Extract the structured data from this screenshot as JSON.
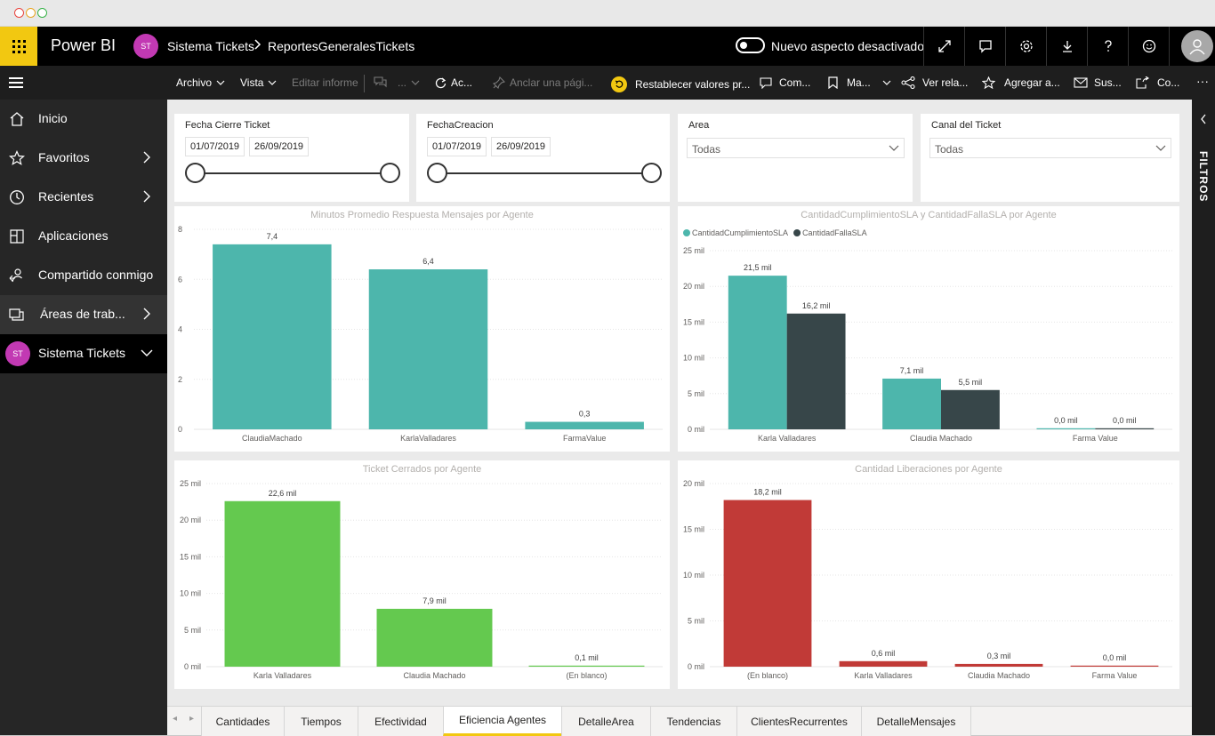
{
  "header": {
    "brand": "Power BI",
    "workspace_initials": "ST",
    "workspace_name": "Sistema Tickets",
    "report_name": "ReportesGeneralesTickets",
    "toggle_label": "Nuevo aspecto desactivado",
    "icons": [
      "expand-icon",
      "comment-icon",
      "settings-icon",
      "download-icon",
      "help-icon",
      "feedback-icon",
      "user-avatar-icon"
    ]
  },
  "commandbar": {
    "archivo": "Archivo",
    "vista": "Vista",
    "editar": "Editar informe",
    "more_dots": "...",
    "actualizar": "Ac...",
    "anclar": "Anclar una pági...",
    "restablecer": "Restablecer valores pr...",
    "comentar": "Com...",
    "marcadores": "Ma...",
    "ver_relacionado": "Ver rela...",
    "agregar": "Agregar a...",
    "suscribir": "Sus...",
    "compartir": "Co...",
    "overflow": "···"
  },
  "nav": {
    "items": [
      {
        "label": "Inicio",
        "icon": "home-icon"
      },
      {
        "label": "Favoritos",
        "icon": "star-icon"
      },
      {
        "label": "Recientes",
        "icon": "clock-icon"
      },
      {
        "label": "Aplicaciones",
        "icon": "apps-icon"
      },
      {
        "label": "Compartido conmigo",
        "icon": "shared-icon"
      },
      {
        "label": "Áreas de trab...",
        "icon": "workspaces-icon"
      },
      {
        "label": "Sistema Tickets",
        "initials": "ST"
      }
    ]
  },
  "slicers": {
    "fecha_cierre": {
      "title": "Fecha Cierre Ticket",
      "from": "01/07/2019",
      "to": "26/09/2019"
    },
    "fecha_creacion": {
      "title": "FechaCreacion",
      "from": "01/07/2019",
      "to": "26/09/2019"
    },
    "area": {
      "title": "Area",
      "value": "Todas"
    },
    "canal": {
      "title": "Canal del Ticket",
      "value": "Todas"
    }
  },
  "filters_label": "FILTROS",
  "colors": {
    "teal": "#4db6ac",
    "dark": "#374649",
    "green": "#64c94f",
    "red": "#c13a37",
    "accent": "#f2c811"
  },
  "chart_data": [
    {
      "type": "bar",
      "title": "Minutos Promedio Respuesta Mensajes por Agente",
      "categories": [
        "ClaudiaMachado",
        "KarlaValladares",
        "FarmaValue"
      ],
      "series": [
        {
          "values": [
            7.4,
            6.4,
            0.3
          ],
          "labels": [
            "7,4",
            "6,4",
            "0,3"
          ],
          "color": "#4db6ac"
        }
      ],
      "yticks": [
        "0",
        "2",
        "4",
        "6",
        "8"
      ],
      "ylim": [
        0,
        8
      ]
    },
    {
      "type": "bar",
      "title": "CantidadCumplimientoSLA y CantidadFallaSLA por Agente",
      "categories": [
        "Karla Valladares",
        "Claudia Machado",
        "Farma Value"
      ],
      "series": [
        {
          "name": "CantidadCumplimientoSLA",
          "values": [
            21.5,
            7.1,
            0.0
          ],
          "labels": [
            "21,5 mil",
            "7,1 mil",
            "0,0 mil"
          ],
          "color": "#4db6ac"
        },
        {
          "name": "CantidadFallaSLA",
          "values": [
            16.2,
            5.5,
            0.0
          ],
          "labels": [
            "16,2 mil",
            "5,5 mil",
            "0,0 mil"
          ],
          "color": "#374649"
        }
      ],
      "yticks": [
        "0 mil",
        "5 mil",
        "10 mil",
        "15 mil",
        "20 mil",
        "25 mil"
      ],
      "ylim": [
        0,
        25
      ],
      "legend": "top-left"
    },
    {
      "type": "bar",
      "title": "Ticket Cerrados por Agente",
      "categories": [
        "Karla Valladares",
        "Claudia Machado",
        "(En blanco)"
      ],
      "series": [
        {
          "values": [
            22.6,
            7.9,
            0.1
          ],
          "labels": [
            "22,6 mil",
            "7,9 mil",
            "0,1 mil"
          ],
          "color": "#64c94f"
        }
      ],
      "yticks": [
        "0 mil",
        "5 mil",
        "10 mil",
        "15 mil",
        "20 mil",
        "25 mil"
      ],
      "ylim": [
        0,
        25
      ]
    },
    {
      "type": "bar",
      "title": "Cantidad Liberaciones por Agente",
      "categories": [
        "(En blanco)",
        "Karla Valladares",
        "Claudia Machado",
        "Farma Value"
      ],
      "series": [
        {
          "values": [
            18.2,
            0.6,
            0.3,
            0.0
          ],
          "labels": [
            "18,2 mil",
            "0,6 mil",
            "0,3 mil",
            "0,0 mil"
          ],
          "color": "#c13a37"
        }
      ],
      "yticks": [
        "0 mil",
        "5 mil",
        "10 mil",
        "15 mil",
        "20 mil"
      ],
      "ylim": [
        0,
        20
      ]
    }
  ],
  "tabs": {
    "prev": "◂",
    "next": "▸",
    "items": [
      "Cantidades",
      "Tiempos",
      "Efectividad",
      "Eficiencia Agentes",
      "DetalleArea",
      "Tendencias",
      "ClientesRecurrentes",
      "DetalleMensajes"
    ],
    "active_index": 3
  }
}
